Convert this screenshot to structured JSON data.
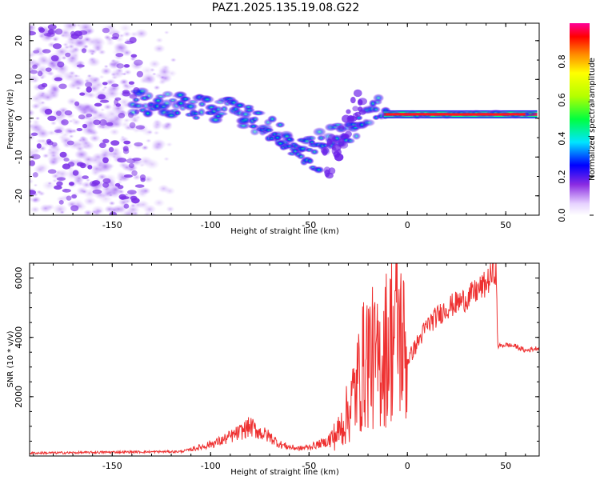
{
  "chart_data": [
    {
      "type": "heatmap",
      "title": "PAZ1.2025.135.19.08.G22",
      "xlabel": "Height of straight line (km)",
      "ylabel": "Frequency (Hz)",
      "xlim": [
        -192,
        67
      ],
      "ylim": [
        -25,
        24.5
      ],
      "xticks": [
        -150,
        -100,
        -50,
        0,
        50
      ],
      "yticks": [
        -20,
        -10,
        0,
        10,
        20
      ],
      "colorbar": {
        "label": "Normalized spectral amplitude",
        "range": [
          0,
          1
        ],
        "ticks": [
          0.0,
          0.2,
          0.4,
          0.6,
          0.8
        ]
      },
      "features": [
        {
          "name": "noise",
          "x": [
            -192,
            -115
          ],
          "y": [
            -25,
            24
          ],
          "amplitude": 0.15
        },
        {
          "name": "track",
          "points": [
            [
              -140,
              4.5
            ],
            [
              -125,
              3.5
            ],
            [
              -115,
              3
            ],
            [
              -100,
              2.5
            ],
            [
              -90,
              2
            ],
            [
              -80,
              0
            ],
            [
              -70,
              -3
            ],
            [
              -60,
              -5
            ],
            [
              -45,
              -6.5
            ],
            [
              -30,
              -3
            ],
            [
              -22,
              0
            ],
            [
              -15,
              2.5
            ],
            [
              -10,
              1
            ],
            [
              0,
              1
            ],
            [
              66,
              1
            ]
          ]
        },
        {
          "name": "branch",
          "points": [
            [
              -75,
              -2
            ],
            [
              -65,
              -6
            ],
            [
              -55,
              -10
            ],
            [
              -45,
              -13
            ]
          ]
        }
      ]
    },
    {
      "type": "line",
      "title": "",
      "xlabel": "Height of straight line (km)",
      "ylabel": "SNR (10 * v/v)",
      "xlim": [
        -192,
        67
      ],
      "ylim": [
        0,
        6500
      ],
      "xticks": [
        -150,
        -100,
        -50,
        0,
        50
      ],
      "yticks": [
        2000,
        4000,
        6000
      ],
      "series": [
        {
          "color": "#ee3030",
          "x": [
            -192,
            -170,
            -150,
            -130,
            -115,
            -105,
            -95,
            -85,
            -80,
            -75,
            -70,
            -65,
            -60,
            -55,
            -50,
            -45,
            -40,
            -35,
            -30,
            -25,
            -20,
            -15,
            -10,
            -5,
            0,
            10,
            20,
            30,
            40,
            45,
            46,
            50,
            55,
            60,
            67
          ],
          "y": [
            100,
            110,
            130,
            140,
            150,
            300,
            500,
            800,
            1000,
            800,
            650,
            400,
            300,
            250,
            300,
            400,
            500,
            800,
            1500,
            2500,
            3500,
            3000,
            3800,
            4500,
            3200,
            4400,
            5000,
            5300,
            5800,
            6300,
            3700,
            3750,
            3700,
            3550,
            3650
          ],
          "noise_after": -40
        }
      ]
    }
  ]
}
